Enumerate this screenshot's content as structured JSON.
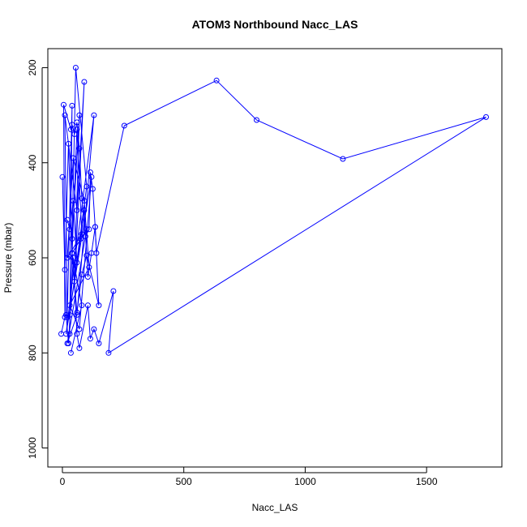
{
  "chart_data": {
    "type": "line",
    "title": "ATOM3 Northbound Nacc_LAS",
    "xlabel": "Nacc_LAS",
    "ylabel": "Pressure (mbar)",
    "xlim": [
      -60,
      1810
    ],
    "ylim": [
      1040,
      160
    ],
    "x_ticks": [
      0,
      500,
      1000,
      1500
    ],
    "y_ticks": [
      200,
      400,
      600,
      800,
      1000
    ],
    "y_reversed": true,
    "grid": false,
    "series_color": "#0000ff",
    "marker": "open-circle",
    "x_tick_labels": [
      "0",
      "500",
      "1000",
      "1500"
    ],
    "y_tick_labels": [
      "200",
      "400",
      "600",
      "800",
      "1000"
    ],
    "series": [
      {
        "x": [
          30,
          40,
          20,
          10,
          60,
          90,
          50,
          70,
          40,
          55,
          100,
          30,
          60,
          80,
          20,
          45,
          90,
          110,
          30,
          70,
          120,
          15,
          50,
          130,
          60,
          20,
          100,
          40,
          80,
          35
        ],
        "y": [
          760,
          280,
          725,
          300,
          500,
          230,
          650,
          300,
          560,
          200,
          450,
          720,
          330,
          550,
          600,
          390,
          480,
          620,
          700,
          750,
          430,
          760,
          610,
          300,
          720,
          780,
          540,
          590,
          700,
          800
        ]
      },
      {
        "x": [
          -5,
          10,
          5,
          35,
          40,
          50,
          60,
          70,
          80,
          95,
          110,
          115,
          125,
          135,
          140,
          255,
          635,
          800,
          1155,
          1745,
          190,
          210,
          150,
          130,
          115,
          105,
          70,
          60,
          45,
          25,
          15,
          0
        ],
        "y": [
          760,
          725,
          278,
          330,
          320,
          340,
          315,
          370,
          475,
          555,
          540,
          420,
          455,
          535,
          590,
          322,
          227,
          310,
          392,
          304,
          800,
          670,
          780,
          750,
          770,
          700,
          790,
          760,
          600,
          780,
          720,
          430
        ]
      },
      {
        "x": [
          20,
          30,
          45,
          60,
          75,
          90,
          105,
          120,
          135,
          150,
          100,
          80,
          60,
          40,
          25,
          10
        ],
        "y": [
          520,
          540,
          480,
          610,
          560,
          500,
          640,
          590,
          535,
          700,
          595,
          635,
          715,
          590,
          360,
          625
        ]
      }
    ]
  }
}
